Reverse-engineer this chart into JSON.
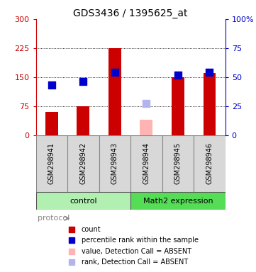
{
  "title": "GDS3436 / 1395625_at",
  "samples": [
    "GSM298941",
    "GSM298942",
    "GSM298943",
    "GSM298944",
    "GSM298945",
    "GSM298946"
  ],
  "red_values": [
    60,
    75,
    225,
    0,
    150,
    160
  ],
  "blue_values": [
    43,
    46,
    54,
    0,
    52,
    54
  ],
  "absent_red_values": [
    0,
    0,
    0,
    40,
    0,
    0
  ],
  "absent_blue_values": [
    0,
    0,
    0,
    27,
    0,
    0
  ],
  "is_absent": [
    false,
    false,
    false,
    true,
    false,
    false
  ],
  "left_ylim": [
    0,
    300
  ],
  "right_ylim": [
    0,
    100
  ],
  "left_yticks": [
    0,
    75,
    150,
    225,
    300
  ],
  "right_yticks": [
    0,
    25,
    50,
    75,
    100
  ],
  "right_yticklabels": [
    "0",
    "25",
    "50",
    "75",
    "100%"
  ],
  "group_colors": {
    "control": "#b2f0b2",
    "Math2 expression": "#55dd55"
  },
  "bar_color_present": "#cc0000",
  "bar_color_absent": "#ffb3b3",
  "dot_color_present": "#0000cc",
  "dot_color_absent": "#b3b3ee",
  "bar_width": 0.4,
  "dot_size": 45,
  "legend_items": [
    {
      "label": "count",
      "color": "#cc0000"
    },
    {
      "label": "percentile rank within the sample",
      "color": "#0000cc"
    },
    {
      "label": "value, Detection Call = ABSENT",
      "color": "#ffb3b3"
    },
    {
      "label": "rank, Detection Call = ABSENT",
      "color": "#b3b3ee"
    }
  ],
  "group_info": [
    {
      "label": "control",
      "start": 0,
      "end": 3,
      "color": "#b2f0b2"
    },
    {
      "label": "Math2 expression",
      "start": 3,
      "end": 6,
      "color": "#55dd55"
    }
  ]
}
